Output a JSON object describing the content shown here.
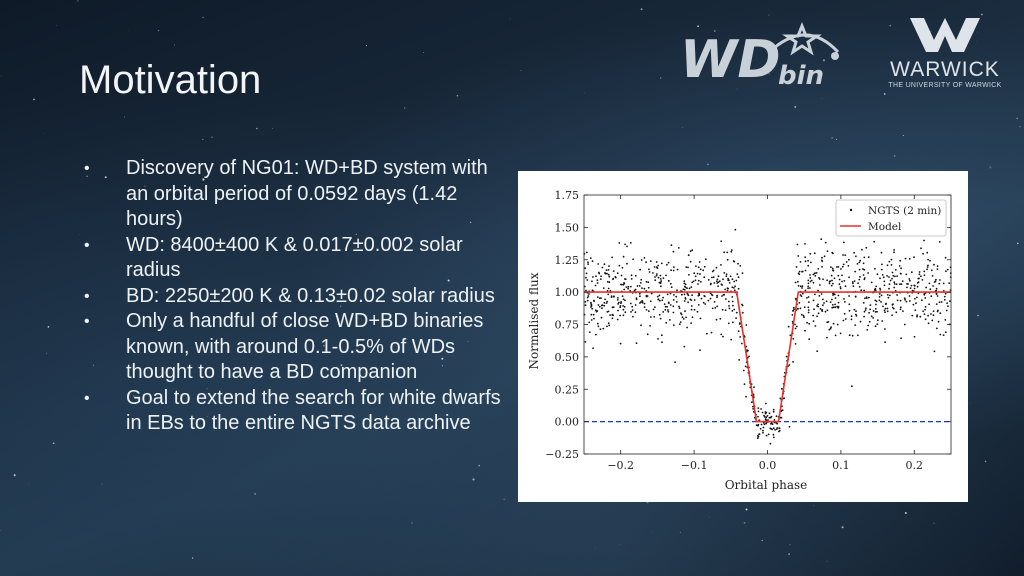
{
  "slide": {
    "title": "Motivation",
    "bullet_glyph": "•",
    "bullets": [
      "Discovery of NG01: WD+BD system with an orbital period of 0.0592 days (1.42 hours)",
      "WD: 8400±400 K & 0.017±0.002 solar radius",
      "BD: 2250±200 K & 0.13±0.02 solar radius",
      "Only a handful of close WD+BD binaries known, with around 0.1-0.5% of WDs thought to have a BD companion",
      "Goal to extend the search for white dwarfs in EBs to the entire NGTS data archive"
    ]
  },
  "logos": {
    "wdbin": "WD",
    "wdbin_suffix": "bin",
    "warwick_name": "WARWICK",
    "warwick_sub": "THE UNIVERSITY OF WARWICK"
  },
  "colors": {
    "model_line": "#e8322a",
    "baseline": "#2433d6",
    "points": "#111111"
  },
  "chart_data": {
    "type": "scatter",
    "xlabel": "Orbital phase",
    "ylabel": "Normalised flux",
    "xlim": [
      -0.25,
      0.25
    ],
    "ylim": [
      -0.25,
      1.75
    ],
    "xticks": [
      -0.2,
      -0.1,
      0.0,
      0.1,
      0.2
    ],
    "xtick_labels": [
      "−0.2",
      "−0.1",
      "0.0",
      "0.1",
      "0.2"
    ],
    "yticks": [
      -0.25,
      0.0,
      0.25,
      0.5,
      0.75,
      1.0,
      1.25,
      1.5,
      1.75
    ],
    "ytick_labels": [
      "−0.25",
      "0.00",
      "0.25",
      "0.50",
      "0.75",
      "1.00",
      "1.25",
      "1.50",
      "1.75"
    ],
    "legend_position": "top-right",
    "series": [
      {
        "name": "NGTS (2 min)",
        "kind": "scatter",
        "description_points": "dense noisy photometry around flux 1.0 out of eclipse with scatter about ±0.3; flux drops to ~0.0 between phase −0.015 and 0.015",
        "baseline": 1.0,
        "noise_sigma": 0.17
      },
      {
        "name": "Model",
        "kind": "line",
        "x": [
          -0.25,
          -0.042,
          -0.015,
          0.015,
          0.042,
          0.25
        ],
        "y": [
          1.0,
          1.0,
          0.0,
          0.0,
          1.0,
          1.0
        ]
      }
    ],
    "reference_line": {
      "y": 0.0,
      "style": "dashed"
    }
  }
}
